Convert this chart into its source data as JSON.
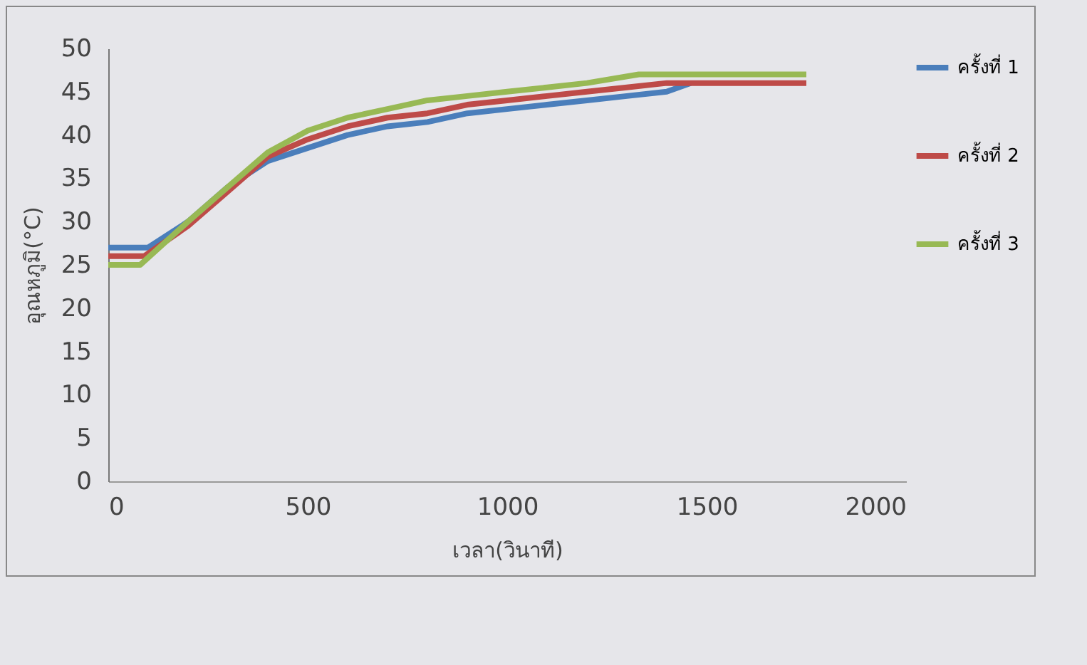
{
  "chart_data": {
    "type": "line",
    "xlabel": "เวลา(วินาที)",
    "ylabel": "อุณหภูมิ(°C)",
    "xlim": [
      0,
      2000
    ],
    "xticks": [
      0,
      500,
      1000,
      1500,
      2000
    ],
    "ylim": [
      0,
      50
    ],
    "yticks": [
      0,
      5,
      10,
      15,
      20,
      25,
      30,
      35,
      40,
      45,
      50
    ],
    "grid": false,
    "legend": "right",
    "marker": "none",
    "line_style": "solid",
    "series": [
      {
        "name": "ครั้งที่ 1",
        "color": "#4a7ebb",
        "x": [
          0,
          100,
          200,
          300,
          400,
          500,
          600,
          700,
          800,
          900,
          1000,
          1100,
          1200,
          1300,
          1400,
          1460
        ],
        "values": [
          27,
          27,
          30,
          34,
          37,
          38.5,
          40,
          41,
          41.5,
          42.5,
          43,
          43.5,
          44,
          44.5,
          45,
          46
        ]
      },
      {
        "name": "ครั้งที่ 2",
        "color": "#be4b48",
        "x": [
          0,
          90,
          200,
          300,
          400,
          500,
          600,
          700,
          800,
          900,
          1000,
          1100,
          1200,
          1300,
          1400,
          1750
        ],
        "values": [
          26,
          26,
          29.5,
          33.5,
          37.5,
          39.5,
          41,
          42,
          42.5,
          43.5,
          44,
          44.5,
          45,
          45.5,
          46,
          46
        ]
      },
      {
        "name": "ครั้งที่ 3",
        "color": "#98b954",
        "x": [
          0,
          80,
          200,
          300,
          400,
          500,
          600,
          700,
          800,
          900,
          1000,
          1100,
          1200,
          1330,
          1750
        ],
        "values": [
          25,
          25,
          30,
          34,
          38,
          40.5,
          42,
          43,
          44,
          44.5,
          45,
          45.5,
          46,
          47,
          47
        ]
      }
    ]
  }
}
